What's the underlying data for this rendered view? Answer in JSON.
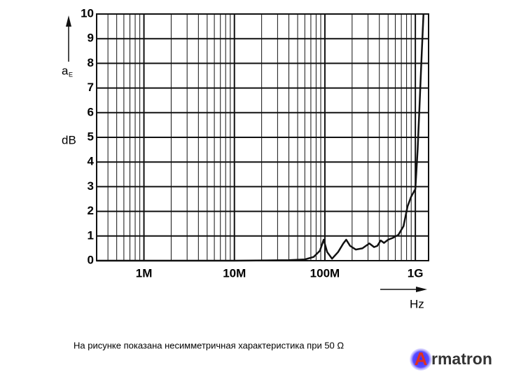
{
  "chart_data": {
    "type": "line",
    "x_unit": "Hz",
    "y_label": "a",
    "y_label_sub": "E",
    "y_unit": "dB",
    "x_log": true,
    "grid": true,
    "color": "#111111",
    "xlim": [
      300000,
      1400000000
    ],
    "ylim": [
      0,
      10
    ],
    "yticks": [
      0,
      1,
      2,
      3,
      4,
      5,
      6,
      7,
      8,
      9,
      10
    ],
    "xticks": [
      {
        "value": 1000000,
        "label": "1M"
      },
      {
        "value": 10000000,
        "label": "10M"
      },
      {
        "value": 100000000,
        "label": "100M"
      },
      {
        "value": 1000000000,
        "label": "1G"
      }
    ],
    "x_minor_ticks": [
      400000,
      500000,
      600000,
      700000,
      800000,
      900000,
      2000000,
      3000000,
      4000000,
      5000000,
      6000000,
      7000000,
      8000000,
      9000000,
      20000000,
      30000000,
      40000000,
      50000000,
      60000000,
      70000000,
      80000000,
      90000000,
      200000000,
      300000000,
      400000000,
      500000000,
      600000000,
      700000000,
      800000000,
      900000000
    ],
    "x": [
      300000,
      1000000,
      10000000,
      40000000,
      60000000,
      75000000,
      88000000,
      97000000,
      106000000,
      120000000,
      140000000,
      160000000,
      172000000,
      190000000,
      220000000,
      260000000,
      310000000,
      350000000,
      380000000,
      414000000,
      450000000,
      500000000,
      560000000,
      650000000,
      740000000,
      820000000,
      900000000,
      1000000000,
      1060000000,
      1110000000,
      1170000000,
      1230000000
    ],
    "values": [
      0,
      0,
      0,
      0.02,
      0.05,
      0.15,
      0.4,
      0.85,
      0.35,
      0.08,
      0.35,
      0.7,
      0.85,
      0.6,
      0.45,
      0.5,
      0.7,
      0.55,
      0.6,
      0.82,
      0.72,
      0.85,
      0.92,
      1.05,
      1.4,
      2.2,
      2.6,
      2.9,
      4.5,
      6.2,
      8.2,
      10
    ]
  },
  "caption": "На рисунке показана несимметричная характеристика при 50 Ω",
  "logo_letter": "A",
  "logo_text": "rmatron"
}
